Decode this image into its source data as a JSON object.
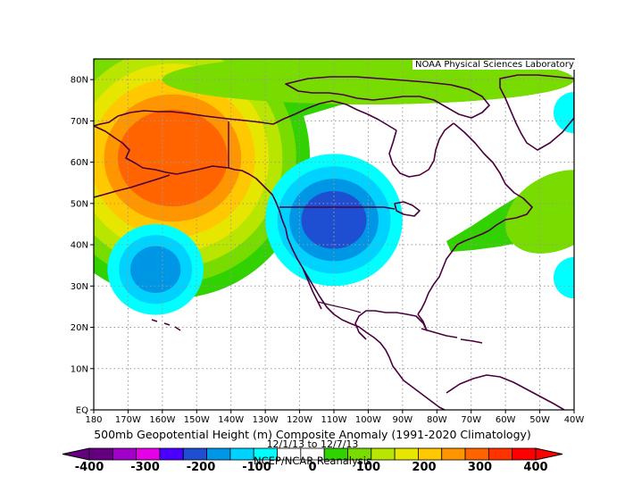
{
  "credit": "NOAA Physical Sciences Laboratory",
  "title": "500mb Geopotential Height (m) Composite Anomaly (1991-2020 Climatology)",
  "dates": "12/1/13  to 12/7/13",
  "source": "NCEP/NCAR Reanalysis",
  "lon_ticks": [
    "180",
    "170W",
    "160W",
    "150W",
    "140W",
    "130W",
    "120W",
    "110W",
    "100W",
    "90W",
    "80W",
    "70W",
    "60W",
    "50W",
    "40W"
  ],
  "lat_ticks": [
    "EQ",
    "10N",
    "20N",
    "30N",
    "40N",
    "50N",
    "60N",
    "70N",
    "80N"
  ],
  "colorbar": {
    "labels": [
      "-400",
      "-300",
      "-200",
      "-100",
      "0",
      "100",
      "200",
      "300",
      "400"
    ],
    "colors": [
      "#640080",
      "#a000c8",
      "#e600e6",
      "#4b00ff",
      "#1e4fd2",
      "#0096e6",
      "#00d2ff",
      "#00ffff",
      "#ffffff",
      "#ffffff",
      "#32d200",
      "#78dc00",
      "#b9e600",
      "#e6e600",
      "#ffc800",
      "#ff9600",
      "#ff6400",
      "#ff3200",
      "#ff0000"
    ]
  },
  "map_data": {
    "type": "filled-contour-anomaly",
    "units": "m",
    "contour_interval": 50,
    "lon_range": [
      -180,
      -40
    ],
    "lat_range": [
      0,
      85
    ],
    "positive_centers": [
      {
        "lon": -157,
        "lat": 61,
        "max_anomaly": 350
      },
      {
        "lon": -45,
        "lat": 48,
        "max_anomaly": 100
      },
      {
        "lon": -100,
        "lat": 80,
        "max_anomaly": 100
      }
    ],
    "negative_centers": [
      {
        "lon": -110,
        "lat": 46,
        "min_anomaly": -200
      },
      {
        "lon": -162,
        "lat": 34,
        "min_anomaly": -150
      },
      {
        "lon": -40,
        "lat": 72,
        "min_anomaly": -50
      },
      {
        "lon": -40,
        "lat": 32,
        "min_anomaly": -50
      }
    ]
  }
}
